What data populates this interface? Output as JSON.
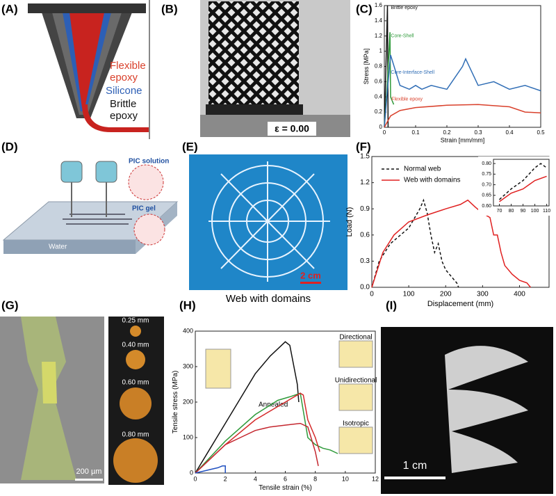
{
  "panels": {
    "a": {
      "label": "(A)",
      "text": [
        "Flexible",
        "epoxy",
        "Silicone",
        "Brittle",
        "epoxy"
      ]
    },
    "b": {
      "label": "(B)",
      "strain": "ε = 0.00"
    },
    "c": {
      "label": "(C)"
    },
    "d": {
      "label": "(D)",
      "callouts": [
        "PIC solution",
        "PIC gel"
      ],
      "substrate": "Water"
    },
    "e": {
      "label": "(E)",
      "scale_bar": "2 cm",
      "caption": "Web with domains"
    },
    "f": {
      "label": "(F)"
    },
    "g": {
      "label": "(G)",
      "scale_bar": "200 µm",
      "diameters": [
        "0.25 mm",
        "0.40 mm",
        "0.60 mm",
        "0.80 mm"
      ]
    },
    "h": {
      "label": "(H)",
      "annotation": "Annealed",
      "insets": [
        "Directional",
        "Unidirectional",
        "Isotropic"
      ]
    },
    "i": {
      "label": "(I)",
      "scale_bar": "1 cm"
    }
  },
  "chart_data": [
    {
      "type": "line",
      "x_label": "Strain [mm/mm]",
      "y_label": "Stress [MPa]",
      "xlim": [
        0,
        0.5
      ],
      "xticks": [
        0,
        0.1,
        0.2,
        0.3,
        0.4,
        0.5
      ],
      "ylim": [
        0,
        1.6
      ],
      "yticks": [
        0,
        0.2,
        0.4,
        0.6,
        0.8,
        1,
        1.2,
        1.4,
        1.6
      ],
      "series": [
        {
          "name": "Brittle epoxy",
          "color": "#111111",
          "x": [
            0,
            0.005,
            0.01,
            0.012
          ],
          "values": [
            0,
            0.8,
            1.6,
            0
          ]
        },
        {
          "name": "Core-Shell",
          "color": "#2e9a3a",
          "x": [
            0,
            0.01,
            0.018,
            0.02,
            0.03
          ],
          "values": [
            0,
            0.6,
            1.25,
            0.4,
            0.3
          ]
        },
        {
          "name": "Core-Interface-Shell",
          "color": "#2f6db5",
          "x": [
            0,
            0.01,
            0.02,
            0.05,
            0.08,
            0.1,
            0.12,
            0.15,
            0.2,
            0.25,
            0.26,
            0.3,
            0.35,
            0.4,
            0.45,
            0.5
          ],
          "values": [
            0,
            0.5,
            0.95,
            0.55,
            0.5,
            0.55,
            0.5,
            0.55,
            0.5,
            0.8,
            0.9,
            0.55,
            0.6,
            0.5,
            0.55,
            0.48
          ]
        },
        {
          "name": "Flexible epoxy",
          "color": "#d9402b",
          "x": [
            0,
            0.02,
            0.05,
            0.1,
            0.2,
            0.3,
            0.4,
            0.45,
            0.5
          ],
          "values": [
            0,
            0.15,
            0.22,
            0.26,
            0.29,
            0.3,
            0.27,
            0.2,
            0.19
          ]
        }
      ]
    },
    {
      "type": "line",
      "x_label": "Displacement (mm)",
      "y_label": "Load (N)",
      "legend": "upper left",
      "xlim": [
        0,
        480
      ],
      "xticks": [
        0,
        100,
        200,
        300,
        400
      ],
      "ylim": [
        0,
        1.5
      ],
      "yticks": [
        {
          "value": 0,
          "label": "0.0"
        },
        0.3,
        0.6,
        0.9,
        1.2,
        1.5
      ],
      "series": [
        {
          "name": "Normal web",
          "color": "#111111",
          "style": "dashed",
          "x": [
            0,
            20,
            50,
            100,
            130,
            140,
            150,
            160,
            170,
            180,
            190,
            200,
            220,
            230,
            235
          ],
          "values": [
            0,
            0.3,
            0.5,
            0.68,
            0.9,
            1.0,
            0.85,
            0.6,
            0.4,
            0.5,
            0.3,
            0.2,
            0.1,
            0.05,
            0
          ]
        },
        {
          "name": "Web with domains",
          "color": "#e02020",
          "x": [
            0,
            30,
            60,
            100,
            150,
            200,
            240,
            260,
            280,
            300,
            320,
            330,
            340,
            350,
            360,
            380,
            400,
            420,
            430
          ],
          "values": [
            0,
            0.4,
            0.6,
            0.75,
            0.83,
            0.9,
            0.95,
            1.0,
            0.92,
            0.85,
            0.8,
            0.6,
            0.6,
            0.4,
            0.25,
            0.15,
            0.08,
            0.05,
            0
          ]
        }
      ]
    },
    {
      "type": "line",
      "xlim": [
        65,
        112
      ],
      "xticks": [
        70,
        80,
        90,
        100,
        110
      ],
      "ylim": [
        0.6,
        0.82
      ],
      "yticks": [
        {
          "value": 0.6,
          "label": "0.60"
        },
        0.65,
        {
          "value": 0.7,
          "label": "0.70"
        },
        0.75,
        {
          "value": 0.8,
          "label": "0.80"
        }
      ],
      "series": [
        {
          "color": "#111111",
          "style": "dashed",
          "x": [
            70,
            80,
            90,
            100,
            105,
            110
          ],
          "values": [
            0.63,
            0.68,
            0.72,
            0.78,
            0.8,
            0.78
          ]
        },
        {
          "color": "#e02020",
          "x": [
            70,
            80,
            90,
            100,
            110
          ],
          "values": [
            0.62,
            0.66,
            0.68,
            0.72,
            0.74
          ]
        }
      ]
    },
    {
      "type": "line",
      "x_label": "Tensile strain (%)",
      "y_label": "Tensile stress (MPa)",
      "xlim": [
        0,
        12
      ],
      "xticks": [
        0,
        2,
        4,
        6,
        8,
        10,
        12
      ],
      "ylim": [
        0,
        400
      ],
      "yticks": [
        0,
        100,
        200,
        300,
        400
      ],
      "series": [
        {
          "color": "#111111",
          "x": [
            0,
            1,
            2,
            3,
            4,
            5,
            6,
            6.3,
            6.8,
            6.9
          ],
          "values": [
            0,
            70,
            140,
            210,
            280,
            330,
            370,
            360,
            250,
            200
          ]
        },
        {
          "color": "#2e9a3a",
          "x": [
            0,
            2,
            4,
            5.5,
            6.3,
            7,
            7.5,
            8,
            8.5,
            9,
            9.5
          ],
          "values": [
            0,
            90,
            165,
            205,
            215,
            225,
            100,
            80,
            70,
            65,
            55
          ]
        },
        {
          "color": "#d42a2a",
          "x": [
            0,
            2,
            4,
            6,
            7,
            7.2,
            7.5,
            8,
            8.3
          ],
          "values": [
            0,
            80,
            150,
            200,
            225,
            220,
            150,
            100,
            60
          ]
        },
        {
          "color": "#c4262e",
          "x": [
            0,
            1,
            2,
            3,
            4,
            5,
            6,
            7,
            7.5,
            8,
            8.2
          ],
          "values": [
            0,
            40,
            80,
            100,
            120,
            130,
            135,
            140,
            130,
            60,
            20
          ]
        },
        {
          "color": "#2050c0",
          "x": [
            0,
            0.5,
            1,
            1.5,
            1.8,
            2,
            2
          ],
          "values": [
            0,
            5,
            10,
            15,
            20,
            20,
            0
          ]
        }
      ]
    }
  ]
}
